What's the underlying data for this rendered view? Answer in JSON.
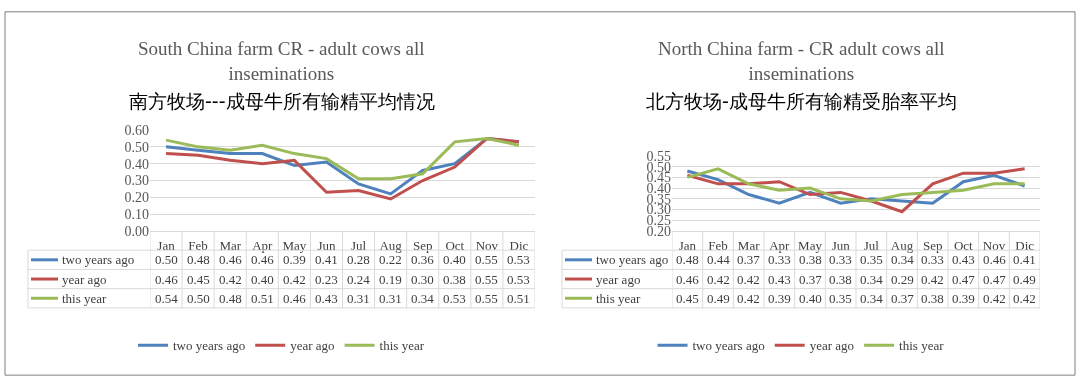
{
  "chart_data": [
    {
      "type": "line",
      "title": "South China farm CR - adult cows all inseminations",
      "subtitle": "南方牧场---成母牛所有输精平均情况",
      "categories": [
        "Jan",
        "Feb",
        "Mar",
        "Apr",
        "May",
        "Jun",
        "Jul",
        "Aug",
        "Sep",
        "Oct",
        "Nov",
        "Dic"
      ],
      "series": [
        {
          "name": "two years ago",
          "color": "#4f81bd",
          "values": [
            0.5,
            0.48,
            0.46,
            0.46,
            0.39,
            0.41,
            0.28,
            0.22,
            0.36,
            0.4,
            0.55,
            0.53
          ],
          "value_labels": [
            "0.50",
            "0.48",
            "0.46",
            "0.46",
            "0.39",
            "0.41",
            "0.28",
            "0.22",
            "0.36",
            "0.40",
            "0.55",
            "0.53"
          ]
        },
        {
          "name": "year ago",
          "color": "#c0504d",
          "values": [
            0.46,
            0.45,
            0.42,
            0.4,
            0.42,
            0.23,
            0.24,
            0.19,
            0.3,
            0.38,
            0.55,
            0.53
          ],
          "value_labels": [
            "0.46",
            "0.45",
            "0.42",
            "0.40",
            "0.42",
            "0.23",
            "0.24",
            "0.19",
            "0.30",
            "0.38",
            "0.55",
            "0.53"
          ]
        },
        {
          "name": "this year",
          "color": "#9bbb59",
          "values": [
            0.54,
            0.5,
            0.48,
            0.51,
            0.46,
            0.43,
            0.31,
            0.31,
            0.34,
            0.53,
            0.55,
            0.51
          ],
          "value_labels": [
            "0.54",
            "0.50",
            "0.48",
            "0.51",
            "0.46",
            "0.43",
            "0.31",
            "0.31",
            "0.34",
            "0.53",
            "0.55",
            "0.51"
          ]
        }
      ],
      "ylim": [
        0,
        0.6
      ],
      "yticks": [
        {
          "value": 0,
          "label": "0.00"
        },
        {
          "value": 0.1,
          "label": "0.10"
        },
        {
          "value": 0.2,
          "label": "0.20"
        },
        {
          "value": 0.3,
          "label": "0.30"
        },
        {
          "value": 0.4,
          "label": "0.40"
        },
        {
          "value": 0.5,
          "label": "0.50"
        },
        {
          "value": 0.6,
          "label": "0.60"
        }
      ],
      "grid": "y",
      "legend": "bottom"
    },
    {
      "type": "line",
      "title": "North China farm - CR adult cows all inseminations",
      "subtitle": "北方牧场-成母牛所有输精受胎率平均",
      "categories": [
        "Jan",
        "Feb",
        "Mar",
        "Apr",
        "May",
        "Jun",
        "Jul",
        "Aug",
        "Sep",
        "Oct",
        "Nov",
        "Dic"
      ],
      "series": [
        {
          "name": "two years ago",
          "color": "#4f81bd",
          "values": [
            0.48,
            0.44,
            0.37,
            0.33,
            0.38,
            0.33,
            0.35,
            0.34,
            0.33,
            0.43,
            0.46,
            0.41
          ],
          "value_labels": [
            "0.48",
            "0.44",
            "0.37",
            "0.33",
            "0.38",
            "0.33",
            "0.35",
            "0.34",
            "0.33",
            "0.43",
            "0.46",
            "0.41"
          ]
        },
        {
          "name": "year ago",
          "color": "#c0504d",
          "values": [
            0.46,
            0.42,
            0.42,
            0.43,
            0.37,
            0.38,
            0.34,
            0.29,
            0.42,
            0.47,
            0.47,
            0.49
          ],
          "value_labels": [
            "0.46",
            "0.42",
            "0.42",
            "0.43",
            "0.37",
            "0.38",
            "0.34",
            "0.29",
            "0.42",
            "0.47",
            "0.47",
            "0.49"
          ]
        },
        {
          "name": "this year",
          "color": "#9bbb59",
          "values": [
            0.45,
            0.49,
            0.42,
            0.39,
            0.4,
            0.35,
            0.34,
            0.37,
            0.38,
            0.39,
            0.42,
            0.42
          ],
          "value_labels": [
            "0.45",
            "0.49",
            "0.42",
            "0.39",
            "0.40",
            "0.35",
            "0.34",
            "0.37",
            "0.38",
            "0.39",
            "0.42",
            "0.42"
          ]
        }
      ],
      "ylim": [
        0.2,
        0.55
      ],
      "yticks": [
        {
          "value": 0.2,
          "label": "0.20"
        },
        {
          "value": 0.25,
          "label": "0.25"
        },
        {
          "value": 0.3,
          "label": "0.30"
        },
        {
          "value": 0.35,
          "label": "0.35"
        },
        {
          "value": 0.4,
          "label": "0.40"
        },
        {
          "value": 0.45,
          "label": "0.45"
        },
        {
          "value": 0.5,
          "label": "0.50"
        },
        {
          "value": 0.55,
          "label": "0.55"
        }
      ],
      "grid": "y",
      "legend": "bottom"
    }
  ]
}
